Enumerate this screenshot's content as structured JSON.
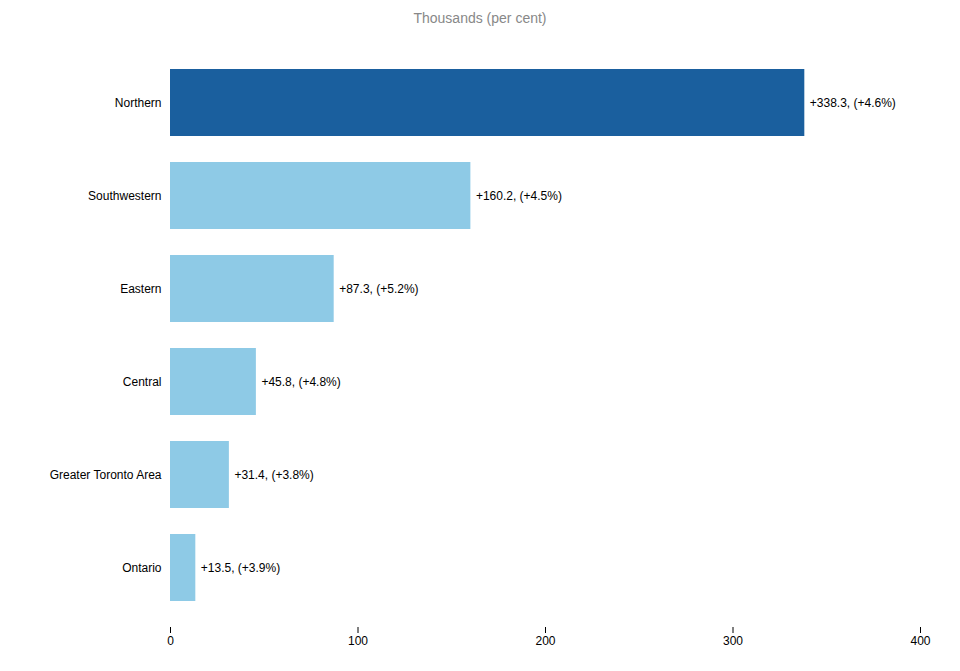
{
  "chart_data": {
    "type": "bar",
    "orientation": "horizontal",
    "title": "Thousands  (per cent)",
    "categories": [
      "Northern",
      "Southwestern",
      "Eastern",
      "Central",
      "Greater Toronto Area",
      "Ontario"
    ],
    "values": [
      338.3,
      160.2,
      87.3,
      45.8,
      31.4,
      13.5
    ],
    "value_labels": [
      "+338.3, (+4.6%)",
      "+160.2, (+4.5%)",
      "+87.3, (+5.2%)",
      "+45.8, (+4.8%)",
      "+31.4, (+3.8%)",
      "+13.5, (+3.9%)"
    ],
    "data_labels": true,
    "colors": [
      "#1a5f9e",
      "#8ecae6",
      "#8ecae6",
      "#8ecae6",
      "#8ecae6",
      "#8ecae6"
    ],
    "xlim": [
      0,
      400
    ],
    "xticks": [
      0,
      100,
      200,
      300,
      400
    ],
    "grid": false
  }
}
